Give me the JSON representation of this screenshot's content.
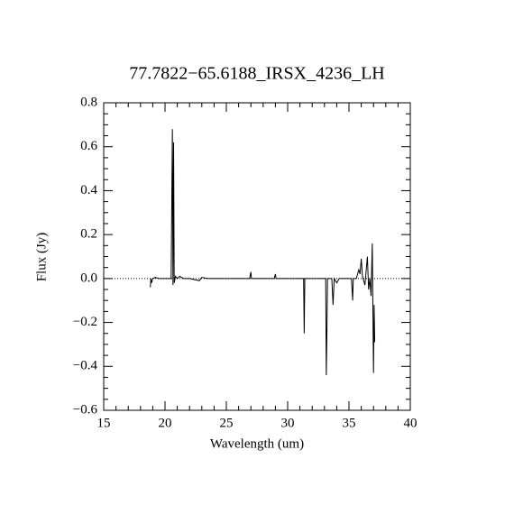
{
  "chart_data": {
    "type": "line",
    "title": "77.7822−65.6188_IRSX_4236_LH",
    "x_label": "Wavelength (um)",
    "y_label": "Flux (Jy)",
    "color": "#000000",
    "xlim": [
      15,
      40
    ],
    "ylim": [
      -0.6,
      0.8
    ],
    "xticks": [
      15,
      20,
      25,
      30,
      35,
      40
    ],
    "yticks": [
      {
        "value": -0.6,
        "label": "−0.6"
      },
      {
        "value": -0.4,
        "label": "−0.4"
      },
      {
        "value": -0.2,
        "label": "−0.2"
      },
      {
        "value": 0,
        "label": "0.0"
      },
      0.2,
      0.4,
      0.6,
      0.8
    ],
    "x_minor": 5,
    "y_minor": 4,
    "zero_line": true,
    "x": [
      18.8,
      18.85,
      18.9,
      19.0,
      19.2,
      19.5,
      20.0,
      20.5,
      20.6,
      20.65,
      20.7,
      20.75,
      20.85,
      21.0,
      21.2,
      21.5,
      22.0,
      22.8,
      23.0,
      23.5,
      24.0,
      25.0,
      26.0,
      26.9,
      27.0,
      27.05,
      28.0,
      28.9,
      29.0,
      29.05,
      30.0,
      31.0,
      31.3,
      31.35,
      31.4,
      32.0,
      32.5,
      33.1,
      33.15,
      33.2,
      33.25,
      33.6,
      33.7,
      33.8,
      34.0,
      34.2,
      34.5,
      35.0,
      35.2,
      35.3,
      35.35,
      35.6,
      35.8,
      35.9,
      36.0,
      36.1,
      36.3,
      36.5,
      36.6,
      36.7,
      36.8,
      36.9,
      37.0,
      37.05,
      37.1
    ],
    "values": [
      -0.04,
      0.0,
      -0.02,
      0.0,
      0.005,
      0.0,
      0.0,
      0.0,
      0.68,
      -0.03,
      0.62,
      -0.02,
      0.01,
      0.0,
      0.01,
      0.0,
      0.0,
      -0.01,
      0.005,
      0.0,
      0.0,
      0.0,
      0.0,
      0.0,
      0.03,
      0.0,
      0.0,
      0.0,
      0.02,
      0.0,
      0.0,
      0.0,
      0.0,
      -0.25,
      0.0,
      0.0,
      0.0,
      0.0,
      -0.44,
      -0.25,
      0.0,
      0.0,
      -0.12,
      0.0,
      -0.02,
      0.0,
      0.0,
      0.0,
      0.0,
      -0.1,
      0.0,
      0.0,
      0.04,
      0.02,
      0.09,
      0.01,
      -0.03,
      0.1,
      -0.05,
      0.0,
      -0.08,
      0.16,
      -0.43,
      -0.12,
      -0.29
    ]
  }
}
